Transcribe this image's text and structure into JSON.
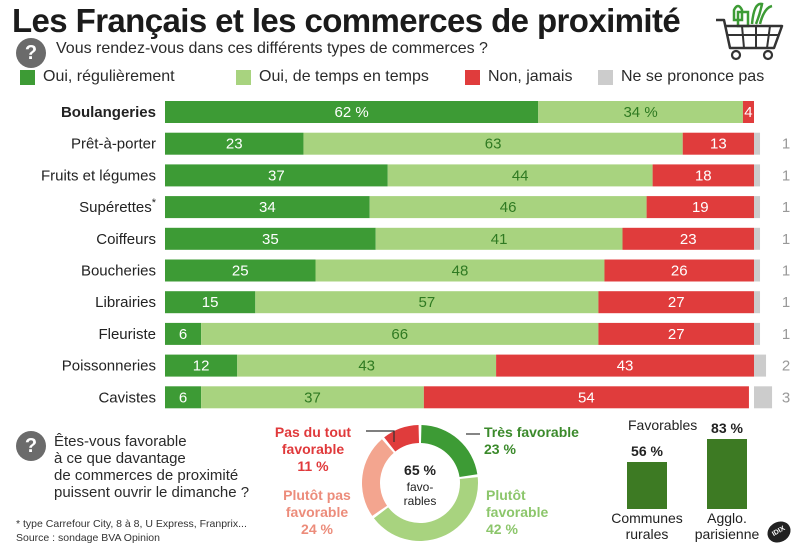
{
  "title": "Les Français et les commerces de proximité",
  "question1": "Vous rendez-vous dans ces différents types de commerces ?",
  "question2_lines": [
    "Êtes-vous favorable",
    "à ce que davantage",
    "de commerces de proximité",
    "puissent ouvrir le dimanche ?"
  ],
  "question_mark": "?",
  "colors": {
    "regular": "#3d9b35",
    "sometimes": "#a8d37f",
    "never": "#e03c3c",
    "nsp": "#cccccc",
    "text_dark_green": "#2f7a22"
  },
  "legend": [
    "Oui, régulièrement",
    "Oui, de temps en temps",
    "Non, jamais",
    "Ne se prononce pas"
  ],
  "chart_data": [
    {
      "type": "bar",
      "orientation": "horizontal",
      "stacked": true,
      "categories": [
        "Boulangeries",
        "Prêt-à-porter",
        "Fruits et légumes",
        "Supérettes*",
        "Coiffeurs",
        "Boucheries",
        "Librairies",
        "Fleuriste",
        "Poissonneries",
        "Cavistes"
      ],
      "category_labels": [
        "Boulangeries",
        "Prêt-à-porter",
        "Fruits et légumes",
        "Supérettes",
        "Coiffeurs",
        "Boucheries",
        "Librairies",
        "Fleuriste",
        "Poissonneries",
        "Cavistes"
      ],
      "series": [
        {
          "name": "Oui, régulièrement",
          "values": [
            62,
            23,
            37,
            34,
            35,
            25,
            15,
            6,
            12,
            6
          ]
        },
        {
          "name": "Oui, de temps en temps",
          "values": [
            34,
            63,
            44,
            46,
            41,
            48,
            57,
            66,
            43,
            37
          ]
        },
        {
          "name": "Non, jamais",
          "values": [
            4,
            13,
            18,
            19,
            23,
            26,
            27,
            27,
            43,
            54
          ]
        },
        {
          "name": "Ne se prononce pas",
          "values": [
            0,
            1,
            1,
            1,
            1,
            1,
            1,
            1,
            2,
            3
          ]
        }
      ],
      "first_row_labels": [
        "62 %",
        "34 %",
        "4"
      ],
      "nsp_labels": [
        "",
        "1",
        "1",
        "1",
        "1",
        "1",
        "1",
        "1",
        "2",
        "3"
      ],
      "asterisk": "*",
      "xlim": [
        0,
        100
      ]
    },
    {
      "type": "pie",
      "donut": true,
      "center_label": [
        "65 %",
        "favo-",
        "rables"
      ],
      "categories": [
        "Très favorable",
        "Plutôt favorable",
        "Plutôt pas favorable",
        "Pas du tout favorable"
      ],
      "values": [
        23,
        42,
        24,
        11
      ],
      "value_labels": [
        "23 %",
        "42 %",
        "24 %",
        "11 %"
      ],
      "label_lines": {
        "tres": [
          "Très favorable",
          "23 %"
        ],
        "plutot": [
          "Plutôt",
          "favorable",
          "42 %"
        ],
        "plutot_pas": [
          "Plutôt pas",
          "favorable",
          "24 %"
        ],
        "pas_du_tout": [
          "Pas du tout",
          "favorable",
          "11 %"
        ]
      },
      "colors": [
        "#3d9b35",
        "#a8d37f",
        "#f3a58f",
        "#e03c3c"
      ]
    },
    {
      "type": "bar",
      "title": "Favorables",
      "categories": [
        "Communes rurales",
        "Agglo. parisienne"
      ],
      "category_lines": [
        [
          "Communes",
          "rurales"
        ],
        [
          "Agglo.",
          "parisienne"
        ]
      ],
      "values": [
        56,
        83
      ],
      "value_labels": [
        "56 %",
        "83 %"
      ],
      "ylim": [
        0,
        100
      ]
    }
  ],
  "footnotes": [
    "* type Carrefour City, 8 à 8, U Express, Franprix...",
    "Source : sondage BVA Opinion"
  ],
  "credit": "IDIX"
}
